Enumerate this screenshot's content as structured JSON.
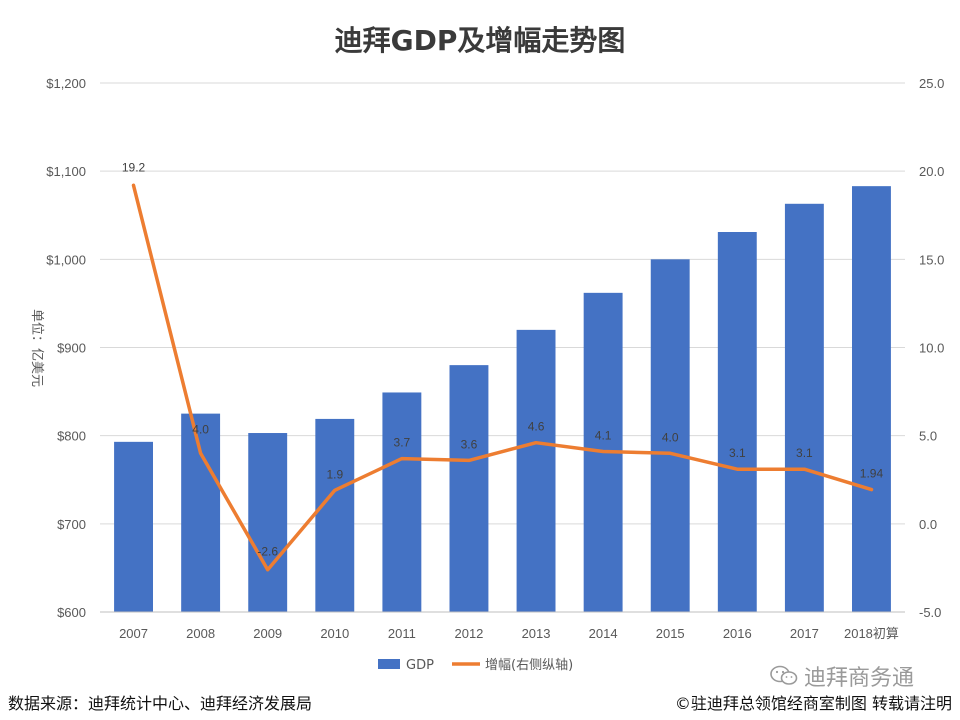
{
  "chart_data": {
    "type": "bar",
    "title": "迪拜GDP及增幅走势图",
    "ylabel": "单位：亿美元",
    "categories": [
      "2007",
      "2008",
      "2009",
      "2010",
      "2011",
      "2012",
      "2013",
      "2014",
      "2015",
      "2016",
      "2017",
      "2018初算"
    ],
    "series": [
      {
        "name": "GDP",
        "type": "bar",
        "axis": "left",
        "values": [
          793,
          825,
          803,
          819,
          849,
          880,
          920,
          962,
          1000,
          1031,
          1063,
          1083
        ]
      },
      {
        "name": "增幅(右侧纵轴)",
        "type": "line",
        "axis": "right",
        "values": [
          19.2,
          4.0,
          -2.6,
          1.9,
          3.7,
          3.6,
          4.6,
          4.1,
          4.0,
          3.1,
          3.1,
          1.94
        ],
        "labels": [
          "19.2",
          "4.0",
          "-2.6",
          "1.9",
          "3.7",
          "3.6",
          "4.6",
          "4.1",
          "4.0",
          "3.1",
          "3.1",
          "1.94"
        ]
      }
    ],
    "y_left": {
      "min": 600,
      "max": 1200,
      "step": 100,
      "ticks": [
        "$600",
        "$700",
        "$800",
        "$900",
        "$1,000",
        "$1,100",
        "$1,200"
      ]
    },
    "y_right": {
      "min": -5,
      "max": 25,
      "step": 5,
      "ticks": [
        "-5.0",
        "0.0",
        "5.0",
        "10.0",
        "15.0",
        "20.0",
        "25.0"
      ]
    },
    "grid": true,
    "legend_position": "bottom",
    "colors": {
      "bar": "#4472C4",
      "line": "#ED7D31",
      "grid": "#D9D9D9"
    }
  },
  "footer": {
    "source": "数据来源：迪拜统计中心、迪拜经济发展局",
    "copyright": "©驻迪拜总领馆经商室制图 转载请注明"
  },
  "watermark": {
    "text": "迪拜商务通",
    "icon": "wechat-icon"
  }
}
